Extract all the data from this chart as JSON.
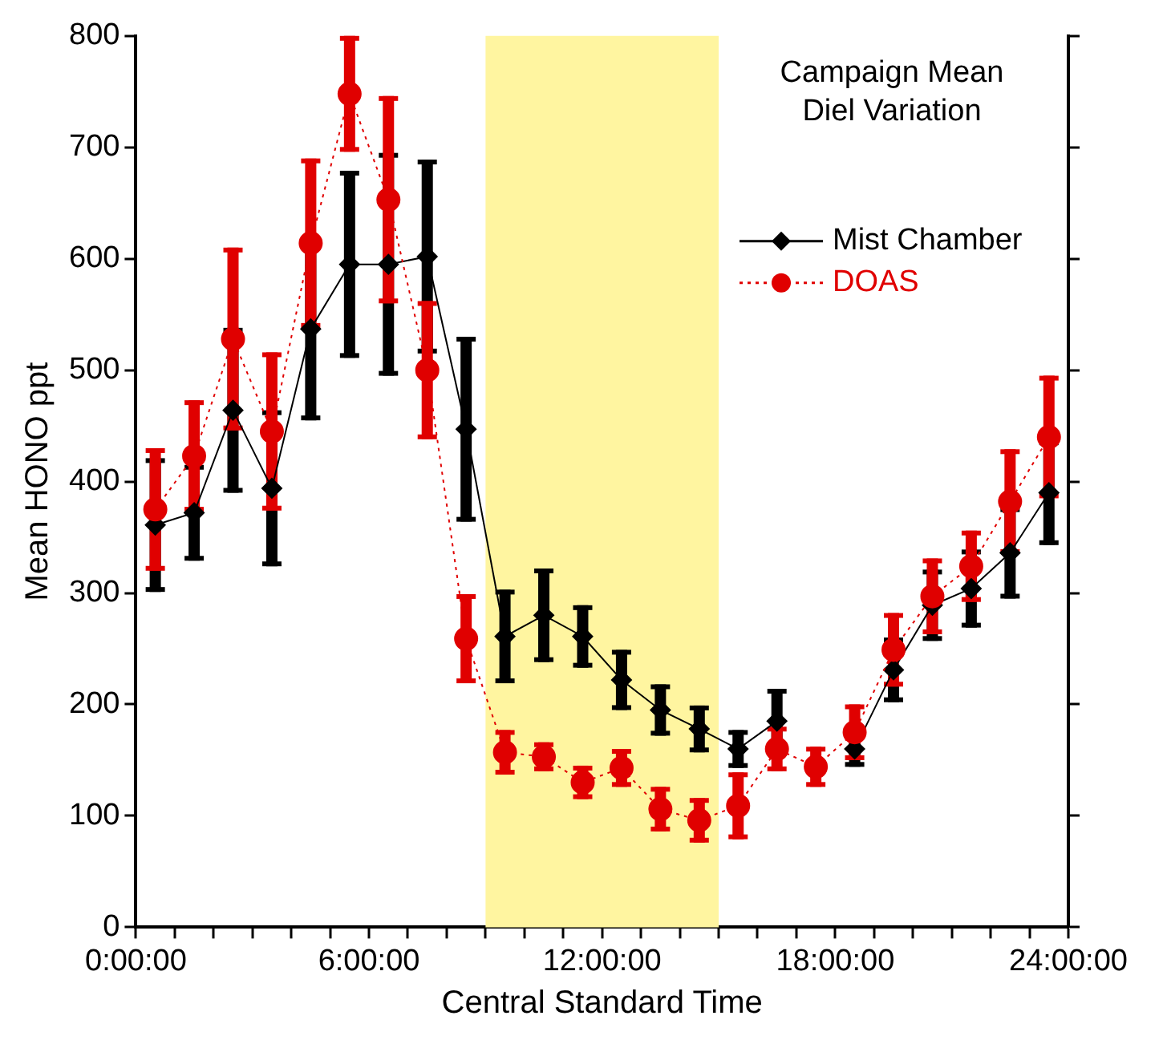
{
  "chart_data": {
    "type": "line",
    "title": "Campaign Mean\nDiel Variation",
    "xlabel": "Central Standard Time",
    "ylabel": "Mean HONO ppt",
    "x": [
      0.5,
      1.5,
      2.5,
      3.5,
      4.5,
      5.5,
      6.5,
      7.5,
      8.5,
      9.5,
      10.5,
      11.5,
      12.5,
      13.5,
      14.5,
      15.5,
      16.5,
      17.5,
      18.5,
      19.5,
      20.5,
      21.5,
      22.5,
      23.5
    ],
    "series": [
      {
        "name": "Mist Chamber",
        "color": "#000000",
        "marker": "diamond",
        "line_style": "solid",
        "values": [
          361,
          372,
          464,
          394,
          537,
          595,
          595,
          602,
          447,
          261,
          280,
          261,
          222,
          195,
          178,
          160,
          185,
          null,
          160,
          231,
          289,
          304,
          336,
          390
        ],
        "errors": [
          60,
          43,
          74,
          70,
          82,
          84,
          100,
          87,
          83,
          42,
          42,
          28,
          27,
          23,
          21,
          17,
          29,
          null,
          16,
          29,
          32,
          35,
          41,
          47
        ]
      },
      {
        "name": "DOAS",
        "color": "#e00000",
        "marker": "circle",
        "line_style": "dotted",
        "values": [
          375,
          423,
          528,
          445,
          614,
          748,
          653,
          500,
          259,
          157,
          153,
          130,
          143,
          106,
          96,
          109,
          160,
          144,
          175,
          249,
          297,
          324,
          382,
          440
        ],
        "errors": [
          55,
          50,
          82,
          71,
          76,
          52,
          93,
          62,
          40,
          20,
          13,
          15,
          17,
          20,
          20,
          30,
          20,
          18,
          25,
          33,
          34,
          32,
          47,
          55
        ]
      }
    ],
    "xlim": [
      0,
      24
    ],
    "xticks": [
      {
        "value": 0,
        "label": "0:00:00"
      },
      {
        "value": 1,
        "label": null
      },
      {
        "value": 2,
        "label": null
      },
      {
        "value": 3,
        "label": null
      },
      {
        "value": 4,
        "label": null
      },
      {
        "value": 5,
        "label": null
      },
      {
        "value": 6,
        "label": "6:00:00"
      },
      {
        "value": 7,
        "label": null
      },
      {
        "value": 8,
        "label": null
      },
      {
        "value": 9,
        "label": null
      },
      {
        "value": 10,
        "label": null
      },
      {
        "value": 11,
        "label": null
      },
      {
        "value": 12,
        "label": "12:00:00"
      },
      {
        "value": 13,
        "label": null
      },
      {
        "value": 14,
        "label": null
      },
      {
        "value": 15,
        "label": null
      },
      {
        "value": 16,
        "label": null
      },
      {
        "value": 17,
        "label": null
      },
      {
        "value": 18,
        "label": "18:00:00"
      },
      {
        "value": 19,
        "label": null
      },
      {
        "value": 20,
        "label": null
      },
      {
        "value": 21,
        "label": null
      },
      {
        "value": 22,
        "label": null
      },
      {
        "value": 23,
        "label": null
      },
      {
        "value": 24,
        "label": "24:00:00"
      }
    ],
    "ylim": [
      0,
      800
    ],
    "yticks": [
      0,
      100,
      200,
      300,
      400,
      500,
      600,
      700,
      800
    ],
    "bands": [
      {
        "axis": "x",
        "from": 9,
        "to": 15,
        "color": "#fff5a0"
      }
    ],
    "grid": false,
    "legend": "top right"
  }
}
